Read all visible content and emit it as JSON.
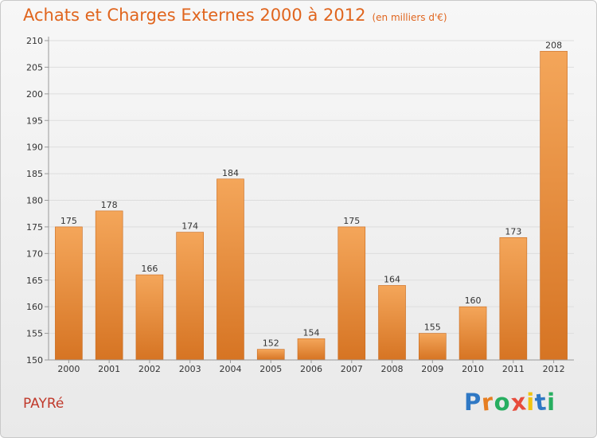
{
  "header": {
    "title": "Achats et Charges Externes 2000 à 2012",
    "unit": "(en milliers d'€)"
  },
  "footer": {
    "commune": "PAYRé",
    "brand": {
      "letters": [
        "P",
        "r",
        "o",
        "x",
        "i",
        "t",
        "i"
      ],
      "colors": [
        "#2f78c4",
        "#e67e22",
        "#27ae60",
        "#e74c3c",
        "#f1c40f",
        "#2f78c4",
        "#27ae60"
      ]
    }
  },
  "colors": {
    "bar_top": "#f4a65a",
    "bar_bottom": "#d67423",
    "title": "#e0651e",
    "grid": "#dddddd",
    "axis": "#999999"
  },
  "chart_data": {
    "type": "bar",
    "title": "Achats et Charges Externes 2000 à 2012",
    "subtitle": "(en milliers d'€)",
    "categories": [
      "2000",
      "2001",
      "2002",
      "2003",
      "2004",
      "2005",
      "2006",
      "2007",
      "2008",
      "2009",
      "2010",
      "2011",
      "2012"
    ],
    "values": [
      175,
      178,
      166,
      174,
      184,
      152,
      154,
      175,
      164,
      155,
      160,
      173,
      208
    ],
    "ylim": [
      150,
      210
    ],
    "yticks": [
      150,
      155,
      160,
      165,
      170,
      175,
      180,
      185,
      190,
      195,
      200,
      205,
      210
    ],
    "grid": true,
    "data_labels": true
  }
}
